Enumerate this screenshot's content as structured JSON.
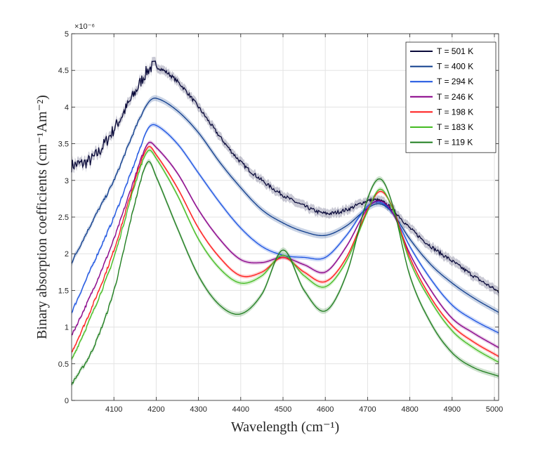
{
  "chart_data": {
    "type": "line",
    "xlabel": "Wavelength (cm⁻¹)",
    "ylabel": "Binary absorption coefficients (cm⁻¹Am⁻²)",
    "y_multiplier": "×10⁻⁶",
    "xlim": [
      4000,
      5010
    ],
    "ylim": [
      0,
      5
    ],
    "xticks": [
      4100,
      4200,
      4300,
      4400,
      4500,
      4600,
      4700,
      4800,
      4900,
      5000
    ],
    "yticks": [
      0,
      0.5,
      1,
      1.5,
      2,
      2.5,
      3,
      3.5,
      4,
      4.5,
      5
    ],
    "grid": true,
    "legend_position": "top-right",
    "x": [
      4000,
      4050,
      4100,
      4150,
      4180,
      4200,
      4250,
      4300,
      4350,
      4400,
      4450,
      4500,
      4550,
      4600,
      4650,
      4700,
      4730,
      4760,
      4800,
      4850,
      4900,
      4950,
      5010
    ],
    "series": [
      {
        "name": "T = 501 K",
        "color": "#0a0a3a",
        "band": 0.12,
        "noisy": true,
        "values": [
          3.2,
          3.3,
          3.7,
          4.2,
          4.5,
          4.55,
          4.35,
          4.0,
          3.6,
          3.25,
          3.0,
          2.8,
          2.65,
          2.55,
          2.6,
          2.72,
          2.72,
          2.6,
          2.35,
          2.1,
          1.9,
          1.7,
          1.48
        ]
      },
      {
        "name": "T = 400 K",
        "color": "#0f3d8c",
        "band": 0.08,
        "values": [
          1.88,
          2.45,
          3.0,
          3.7,
          4.05,
          4.12,
          3.95,
          3.65,
          3.25,
          2.9,
          2.6,
          2.42,
          2.3,
          2.25,
          2.38,
          2.62,
          2.68,
          2.55,
          2.2,
          1.85,
          1.6,
          1.4,
          1.2
        ]
      },
      {
        "name": "T = 294 K",
        "color": "#1a52e0",
        "band": 0.06,
        "values": [
          1.2,
          1.85,
          2.5,
          3.25,
          3.7,
          3.75,
          3.5,
          3.1,
          2.7,
          2.35,
          2.1,
          1.98,
          1.95,
          1.95,
          2.25,
          2.65,
          2.7,
          2.55,
          2.1,
          1.65,
          1.3,
          1.1,
          0.92
        ]
      },
      {
        "name": "T = 246 K",
        "color": "#880088",
        "band": 0.05,
        "values": [
          0.88,
          1.5,
          2.2,
          3.05,
          3.5,
          3.45,
          3.1,
          2.6,
          2.2,
          1.92,
          1.88,
          1.95,
          1.85,
          1.75,
          2.1,
          2.62,
          2.72,
          2.55,
          2.0,
          1.5,
          1.12,
          0.92,
          0.72
        ]
      },
      {
        "name": "T = 198 K",
        "color": "#ff1a1a",
        "band": 0.05,
        "values": [
          0.65,
          1.3,
          2.05,
          3.0,
          3.45,
          3.35,
          2.9,
          2.35,
          1.95,
          1.7,
          1.75,
          1.95,
          1.75,
          1.62,
          1.95,
          2.6,
          2.85,
          2.62,
          1.95,
          1.4,
          1.02,
          0.8,
          0.6
        ]
      },
      {
        "name": "T = 183 K",
        "color": "#44bb22",
        "band": 0.06,
        "values": [
          0.55,
          1.2,
          1.95,
          2.95,
          3.4,
          3.3,
          2.8,
          2.2,
          1.8,
          1.6,
          1.7,
          1.98,
          1.7,
          1.55,
          1.9,
          2.58,
          2.88,
          2.6,
          1.9,
          1.35,
          0.95,
          0.72,
          0.52
        ]
      },
      {
        "name": "T = 119 K",
        "color": "#1e7d1e",
        "band": 0.07,
        "values": [
          0.22,
          0.7,
          1.5,
          2.7,
          3.25,
          3.05,
          2.35,
          1.7,
          1.3,
          1.18,
          1.45,
          2.05,
          1.5,
          1.22,
          1.72,
          2.75,
          3.02,
          2.65,
          1.7,
          1.05,
          0.65,
          0.45,
          0.33
        ]
      }
    ]
  }
}
